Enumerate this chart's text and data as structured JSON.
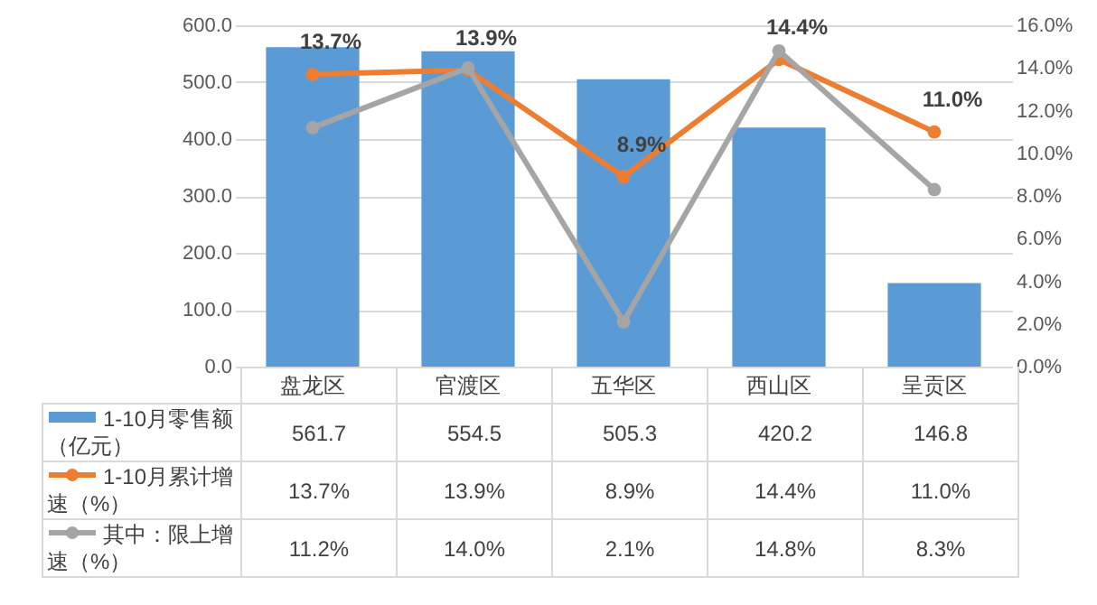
{
  "chart_data": {
    "type": "bar",
    "categories": [
      "盘龙区",
      "官渡区",
      "五华区",
      "西山区",
      "呈贡区"
    ],
    "series": [
      {
        "name": "1-10月零售额（亿元）",
        "type": "bar",
        "color": "#5b9bd5",
        "values": [
          561.7,
          554.5,
          505.3,
          420.2,
          146.8
        ],
        "value_labels": [
          "561.7",
          "554.5",
          "505.3",
          "420.2",
          "146.8"
        ]
      },
      {
        "name": "1-10月累计增速（%）",
        "type": "line",
        "axis": "y2",
        "color": "#ed7d31",
        "values": [
          13.7,
          13.9,
          8.9,
          14.4,
          11.0
        ],
        "value_labels": [
          "13.7%",
          "13.9%",
          "8.9%",
          "14.4%",
          "11.0%"
        ]
      },
      {
        "name": "其中：限上增速（%）",
        "type": "line",
        "axis": "y2",
        "color": "#a5a5a5",
        "values": [
          11.2,
          14.0,
          2.1,
          14.8,
          8.3
        ],
        "value_labels": [
          "11.2%",
          "14.0%",
          "2.1%",
          "14.8%",
          "8.3%"
        ]
      }
    ],
    "ylim": [
      0,
      600
    ],
    "yticks": [
      {
        "value": 0,
        "label": "0.0"
      },
      {
        "value": 100,
        "label": "100.0"
      },
      {
        "value": 200,
        "label": "200.0"
      },
      {
        "value": 300,
        "label": "300.0"
      },
      {
        "value": 400,
        "label": "400.0"
      },
      {
        "value": 500,
        "label": "500.0"
      },
      {
        "value": 600,
        "label": "600.0"
      }
    ],
    "y2lim": [
      0,
      16
    ],
    "y2ticks": [
      {
        "value": 0,
        "label": "0.0%"
      },
      {
        "value": 2,
        "label": "2.0%"
      },
      {
        "value": 4,
        "label": "4.0%"
      },
      {
        "value": 6,
        "label": "6.0%"
      },
      {
        "value": 8,
        "label": "8.0%"
      },
      {
        "value": 10,
        "label": "10.0%"
      },
      {
        "value": 12,
        "label": "12.0%"
      },
      {
        "value": 14,
        "label": "14.0%"
      },
      {
        "value": 16,
        "label": "16.0%"
      }
    ],
    "grid": "y",
    "legend": "bottom left",
    "marker": "circle",
    "line_style": "solid"
  }
}
